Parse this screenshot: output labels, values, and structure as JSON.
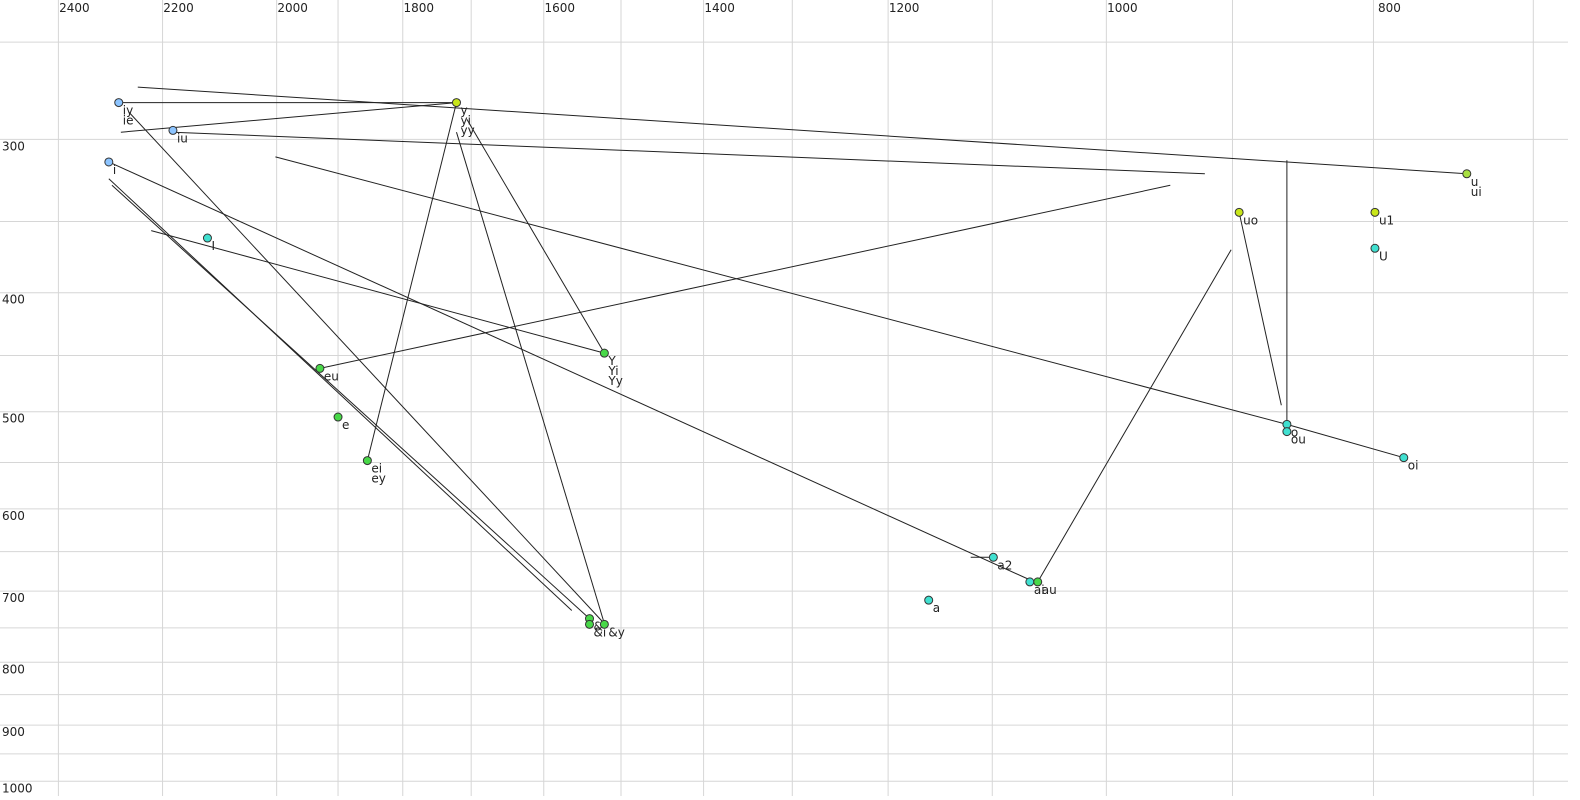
{
  "chart_data": {
    "type": "scatter",
    "xscale": "log",
    "yscale": "log",
    "xlim": [
      2520,
      680
    ],
    "ylim": [
      231,
      1028
    ],
    "xticks": [
      2400,
      2200,
      2000,
      1800,
      1600,
      1400,
      1200,
      1000,
      800
    ],
    "yticks": [
      300,
      400,
      500,
      600,
      700,
      800,
      900,
      1000
    ],
    "xgrid": [
      2400,
      2200,
      2000,
      1900,
      1800,
      1700,
      1600,
      1500,
      1400,
      1300,
      1200,
      1100,
      1000,
      900,
      800,
      700
    ],
    "ygrid": [
      250,
      300,
      350,
      400,
      450,
      500,
      550,
      600,
      650,
      700,
      750,
      800,
      850,
      900,
      950,
      1000
    ],
    "points": [
      {
        "labels": [
          "iy",
          "ie"
        ],
        "x": 2282,
        "y": 280,
        "color": "#8cc4ff"
      },
      {
        "labels": [
          "iu"
        ],
        "x": 2181,
        "y": 295,
        "color": "#8cc4ff"
      },
      {
        "labels": [
          "i"
        ],
        "x": 2301,
        "y": 313,
        "color": "#8cc4ff"
      },
      {
        "labels": [
          "I"
        ],
        "x": 2119,
        "y": 361,
        "color": "#40e0d0"
      },
      {
        "labels": [
          "eu"
        ],
        "x": 1929,
        "y": 461,
        "color": "#48d848"
      },
      {
        "labels": [
          "e"
        ],
        "x": 1900,
        "y": 505,
        "color": "#48d848"
      },
      {
        "labels": [
          "ei",
          "ey"
        ],
        "x": 1854,
        "y": 548,
        "color": "#48d848"
      },
      {
        "labels": [
          "y",
          "yi",
          "yy"
        ],
        "x": 1721,
        "y": 280,
        "color": "#c8e619"
      },
      {
        "labels": [
          "Y",
          "Yi",
          "Yy"
        ],
        "x": 1521,
        "y": 448,
        "color": "#48d848"
      },
      {
        "labels": [
          "&"
        ],
        "x": 1540,
        "y": 737,
        "color": "#48d848"
      },
      {
        "labels": [
          "&i"
        ],
        "x": 1540,
        "y": 745,
        "color": "#48d848"
      },
      {
        "labels": [
          "&y"
        ],
        "x": 1521,
        "y": 745,
        "color": "#48d848"
      },
      {
        "labels": [
          "a2"
        ],
        "x": 1099,
        "y": 657,
        "color": "#40e0d0"
      },
      {
        "labels": [
          "a"
        ],
        "x": 1160,
        "y": 712,
        "color": "#40e0d0"
      },
      {
        "labels": [
          "ai"
        ],
        "x": 1066,
        "y": 688,
        "color": "#40e0d0"
      },
      {
        "labels": [
          "au"
        ],
        "x": 1059,
        "y": 688,
        "color": "#48d848"
      },
      {
        "labels": [
          "uo"
        ],
        "x": 895,
        "y": 344,
        "color": "#c8e619"
      },
      {
        "labels": [
          "u1"
        ],
        "x": 799,
        "y": 344,
        "color": "#c8e619"
      },
      {
        "labels": [
          "U"
        ],
        "x": 799,
        "y": 368,
        "color": "#40e0d0"
      },
      {
        "labels": [
          "u",
          "ui"
        ],
        "x": 740,
        "y": 320,
        "color": "#a8e040"
      },
      {
        "labels": [
          "o"
        ],
        "x": 860,
        "y": 512,
        "color": "#40e0d0"
      },
      {
        "labels": [
          "ou"
        ],
        "x": 860,
        "y": 519,
        "color": "#40e0d0"
      },
      {
        "labels": [
          "oi"
        ],
        "x": 780,
        "y": 545,
        "color": "#40e0d0"
      }
    ],
    "segments": [
      {
        "x": [
          2246,
          740
        ],
        "y": [
          272,
          320
        ]
      },
      {
        "x": [
          2282,
          1721
        ],
        "y": [
          280,
          280
        ]
      },
      {
        "x": [
          2278,
          1721
        ],
        "y": [
          296,
          280
        ]
      },
      {
        "x": [
          2181,
          921
        ],
        "y": [
          296,
          320
        ]
      },
      {
        "x": [
          2002,
          860
        ],
        "y": [
          310,
          512
        ]
      },
      {
        "x": [
          860,
          780
        ],
        "y": [
          512,
          545
        ]
      },
      {
        "x": [
          2301,
          1062
        ],
        "y": [
          313,
          688
        ]
      },
      {
        "x": [
          2301,
          1563
        ],
        "y": [
          323,
          726
        ]
      },
      {
        "x": [
          2295,
          1540
        ],
        "y": [
          327,
          737
        ]
      },
      {
        "x": [
          2263,
          1521
        ],
        "y": [
          285,
          744
        ]
      },
      {
        "x": [
          2221,
          1521
        ],
        "y": [
          356,
          448
        ]
      },
      {
        "x": [
          1929,
          948
        ],
        "y": [
          461,
          327
        ]
      },
      {
        "x": [
          1854,
          1721
        ],
        "y": [
          548,
          280
        ]
      },
      {
        "x": [
          1721,
          1521
        ],
        "y": [
          296,
          744
        ]
      },
      {
        "x": [
          1706,
          1521
        ],
        "y": [
          289,
          448
        ]
      },
      {
        "x": [
          1120,
          1099
        ],
        "y": [
          657,
          657
        ]
      },
      {
        "x": [
          1059,
          901
        ],
        "y": [
          688,
          369
        ]
      },
      {
        "x": [
          895,
          864
        ],
        "y": [
          344,
          494
        ]
      },
      {
        "x": [
          860,
          860
        ],
        "y": [
          312,
          512
        ]
      }
    ]
  }
}
